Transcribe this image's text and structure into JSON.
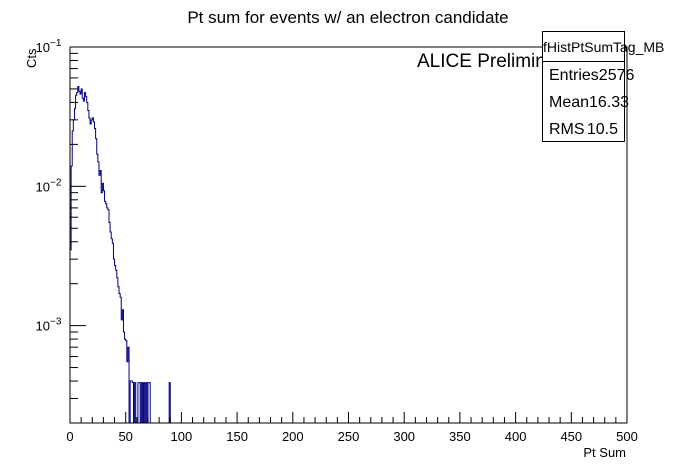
{
  "chart_data": {
    "type": "histogram",
    "title": "Pt sum for events w/ an electron candidate",
    "xlabel": "Pt Sum",
    "ylabel": "Cts",
    "xlim": [
      0,
      500
    ],
    "ylim": [
      0.0002,
      0.1
    ],
    "log_y": true,
    "x_ticks": [
      "0",
      "50",
      "100",
      "150",
      "200",
      "250",
      "300",
      "350",
      "400",
      "450",
      "500"
    ],
    "y_ticks": [
      {
        "value": 0.001,
        "base": "10",
        "exp": "−3"
      },
      {
        "value": 0.01,
        "base": "10",
        "exp": "−2"
      },
      {
        "value": 0.1,
        "base": "10",
        "exp": "−1"
      }
    ],
    "annotation": "ALICE Preliminary",
    "line_color": "#000080",
    "bin_width": 1,
    "series": [
      {
        "x": [
          0,
          1,
          2,
          3,
          4,
          5,
          6,
          7,
          8,
          9,
          10,
          11,
          12,
          13,
          14,
          15,
          16,
          17,
          18,
          19,
          20,
          21,
          22,
          23,
          24,
          25,
          26,
          27,
          28,
          29,
          30,
          31,
          32,
          33,
          34,
          35,
          36,
          37,
          38,
          39,
          40,
          41,
          42,
          43,
          44,
          45,
          46,
          47,
          48,
          49,
          50,
          51,
          52,
          53,
          54,
          55,
          56,
          57,
          58,
          59,
          60,
          61,
          62,
          63,
          64,
          65,
          66,
          67,
          68,
          69,
          70,
          71,
          72,
          89
        ],
        "values": [
          0.0035,
          0.014,
          0.025,
          0.03,
          0.036,
          0.045,
          0.047,
          0.052,
          0.048,
          0.046,
          0.05,
          0.043,
          0.041,
          0.047,
          0.044,
          0.04,
          0.035,
          0.031,
          0.028,
          0.03,
          0.031,
          0.029,
          0.026,
          0.022,
          0.017,
          0.015,
          0.012,
          0.013,
          0.009,
          0.0105,
          0.0093,
          0.0078,
          0.0075,
          0.007,
          0.0068,
          0.0055,
          0.0047,
          0.0042,
          0.0039,
          0.003,
          0.0027,
          0.0025,
          0.0022,
          0.0019,
          0.0017,
          0.0016,
          0.0011,
          0.0013,
          0.0009,
          0.0008,
          0.00078,
          0.00055,
          0.0007,
          0.0002,
          0.0004,
          0.0004,
          0.00039,
          0.0002,
          0.00039,
          0.0002,
          0.0002,
          0.00039,
          0.00039,
          0.0002,
          0.00039,
          0.0002,
          0.00039,
          0.0002,
          0.00039,
          0.0002,
          0.00039,
          0.00039,
          0.0002,
          0.00039
        ]
      }
    ]
  },
  "stats_box": {
    "name": "fHistPtSumTag_MB",
    "rows": [
      {
        "label": "Entries",
        "value": "2576"
      },
      {
        "label": "Mean",
        "value": "16.33"
      },
      {
        "label": "RMS",
        "value": "10.5"
      }
    ]
  }
}
